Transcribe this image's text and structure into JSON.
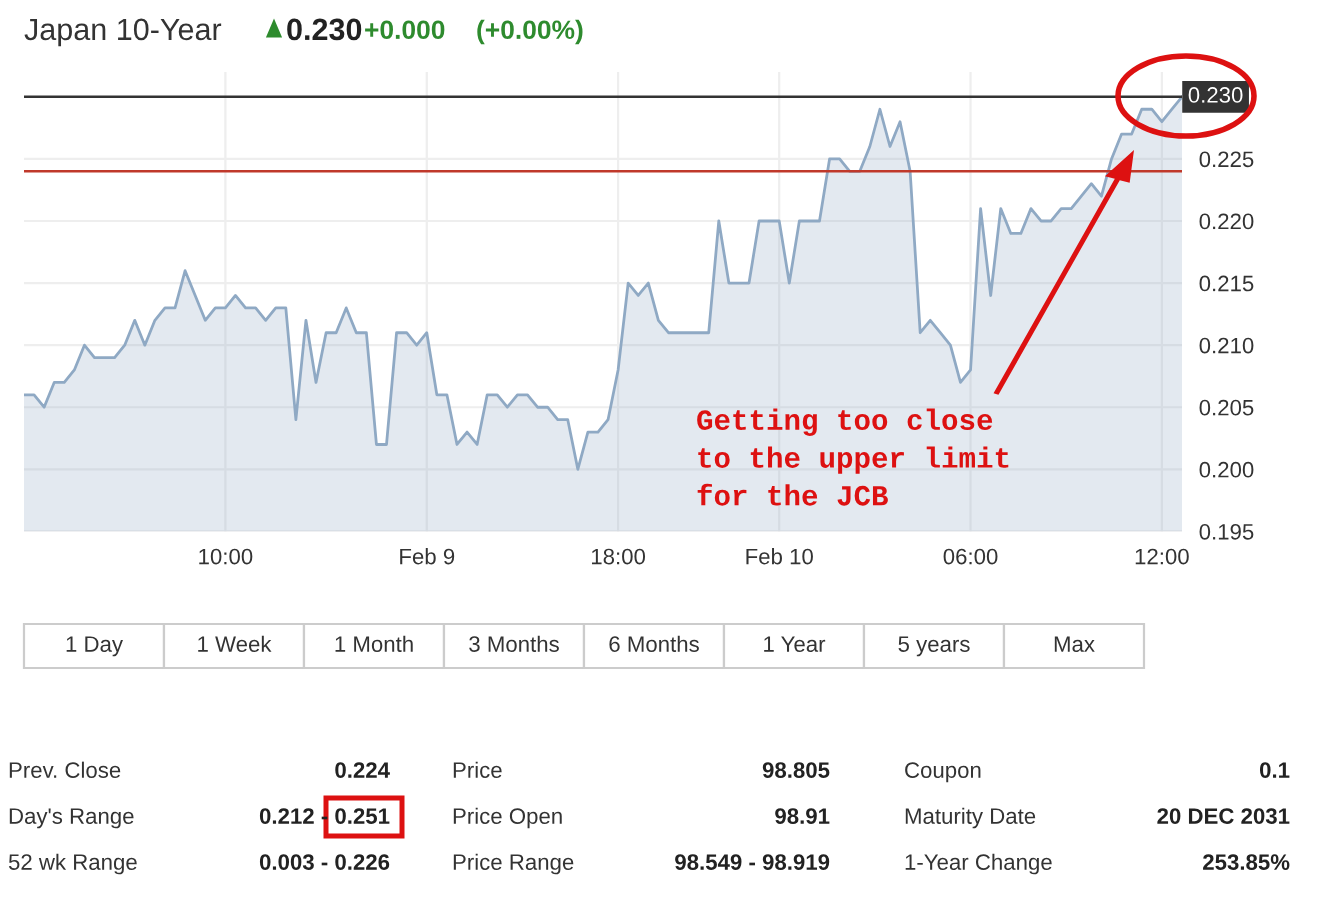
{
  "chart_data": {
    "type": "area",
    "title": "Japan 10-Year",
    "categories": [
      null,
      null,
      null,
      null,
      null,
      null,
      null,
      null,
      null,
      null,
      null,
      null,
      null,
      null,
      null,
      null,
      null,
      null,
      null,
      null,
      "10:00",
      null,
      null,
      null,
      null,
      null,
      null,
      null,
      null,
      null,
      null,
      null,
      null,
      null,
      null,
      null,
      null,
      null,
      null,
      null,
      "Feb 9",
      null,
      null,
      null,
      null,
      null,
      null,
      null,
      null,
      null,
      null,
      null,
      null,
      null,
      null,
      null,
      null,
      null,
      null,
      "18:00",
      null,
      null,
      null,
      null,
      null,
      null,
      null,
      null,
      null,
      null,
      null,
      null,
      null,
      null,
      null,
      "Feb 10",
      null,
      null,
      null,
      null,
      null,
      null,
      null,
      null,
      null,
      null,
      null,
      null,
      null,
      null,
      null,
      null,
      null,
      null,
      "06:00",
      null,
      null,
      null,
      null,
      null,
      null,
      null,
      null,
      null,
      null,
      null,
      null,
      null,
      null,
      null,
      null,
      null,
      null,
      "12:00",
      null,
      null
    ],
    "series": [
      {
        "color": "#8fa9c4",
        "values": [
          0.206,
          0.206,
          0.205,
          0.207,
          0.207,
          0.208,
          0.21,
          0.209,
          0.209,
          0.209,
          0.21,
          0.212,
          0.21,
          0.212,
          0.213,
          0.213,
          0.216,
          0.214,
          0.212,
          0.213,
          0.213,
          0.214,
          0.213,
          0.213,
          0.212,
          0.213,
          0.213,
          0.204,
          0.212,
          0.207,
          0.211,
          0.211,
          0.213,
          0.211,
          0.211,
          0.202,
          0.202,
          0.211,
          0.211,
          0.21,
          0.211,
          0.206,
          0.206,
          0.202,
          0.203,
          0.202,
          0.206,
          0.206,
          0.205,
          0.206,
          0.206,
          0.205,
          0.205,
          0.204,
          0.204,
          0.2,
          0.203,
          0.203,
          0.204,
          0.208,
          0.215,
          0.214,
          0.215,
          0.212,
          0.211,
          0.211,
          0.211,
          0.211,
          0.211,
          0.22,
          0.215,
          0.215,
          0.215,
          0.22,
          0.22,
          0.22,
          0.215,
          0.22,
          0.22,
          0.22,
          0.225,
          0.225,
          0.224,
          0.224,
          0.226,
          0.229,
          0.226,
          0.228,
          0.224,
          0.211,
          0.212,
          0.211,
          0.21,
          0.207,
          0.208,
          0.221,
          0.214,
          0.221,
          0.219,
          0.219,
          0.221,
          0.22,
          0.22,
          0.221,
          0.221,
          0.222,
          0.223,
          0.222,
          0.225,
          0.227,
          0.227,
          0.229,
          0.229,
          0.228,
          0.229,
          0.23
        ]
      }
    ],
    "ylim": [
      0.195,
      0.232
    ],
    "yticks": [
      {
        "value": 0.195,
        "label": "0.195"
      },
      {
        "value": 0.2,
        "label": "0.200"
      },
      {
        "value": 0.205,
        "label": "0.205"
      },
      {
        "value": 0.21,
        "label": "0.210"
      },
      {
        "value": 0.215,
        "label": "0.215"
      },
      {
        "value": 0.22,
        "label": "0.220"
      },
      {
        "value": 0.225,
        "label": "0.225"
      }
    ],
    "grid": true,
    "ref_lines": [
      {
        "axis": "y",
        "value": 0.23,
        "label": "0.230",
        "color": "#333333"
      },
      {
        "axis": "y",
        "value": 0.224,
        "color": "#c0392b"
      }
    ],
    "annotations": [
      "0.230",
      "+0.000",
      "(+0.00%)",
      "1 Day",
      "1 Week",
      "1 Month",
      "3 Months",
      "6 Months",
      "1 Year",
      "5 years",
      "Max",
      "Prev. Close",
      "0.224",
      "Price",
      "98.805",
      "Coupon",
      "0.1",
      "Day's Range",
      "0.212 - 0.251",
      "Price Open",
      "98.91",
      "Maturity Date",
      "20 DEC 2031",
      "52 wk Range",
      "0.003 - 0.226",
      "Price Range",
      "98.549 - 98.919",
      "1-Year Change",
      "253.85%",
      "Getting too close\nto the upper limit\nfor the JCB"
    ]
  }
}
